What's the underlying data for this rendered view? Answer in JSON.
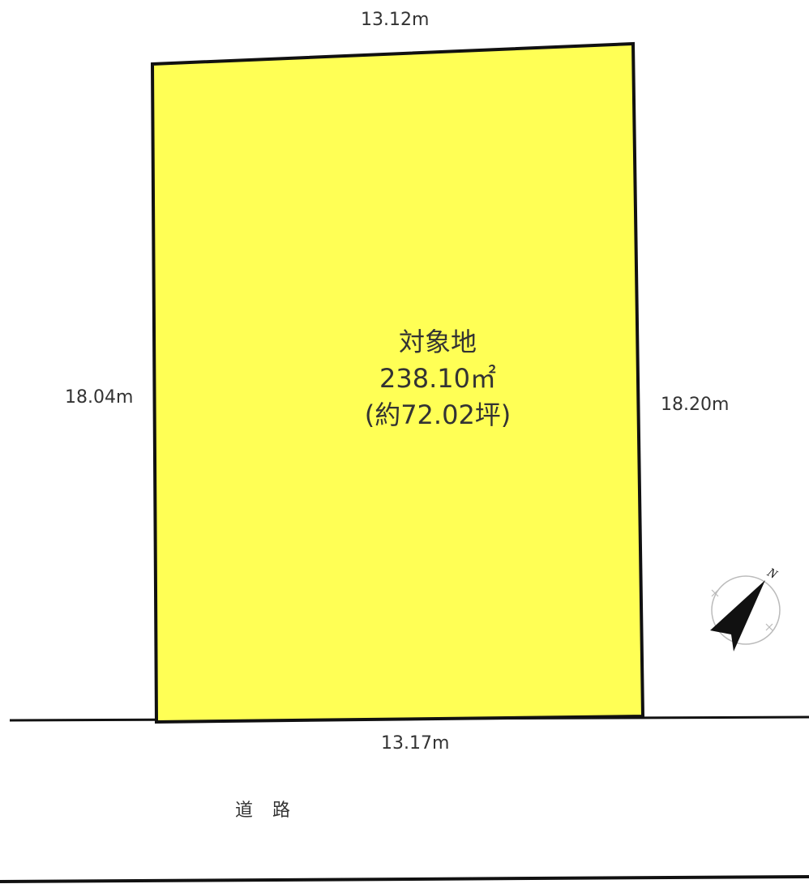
{
  "plot": {
    "fill_color": "#ffff55",
    "outline_color": "#111111",
    "label": "対象地",
    "area": "238.10㎡",
    "area_tsubo": "(約72.02坪)"
  },
  "dimensions": {
    "top": "13.12m",
    "bottom": "13.17m",
    "left": "18.04m",
    "right": "18.20m"
  },
  "road": {
    "label": "道路"
  },
  "compass": {
    "icon": "north-arrow-icon",
    "north_letter": "N"
  }
}
